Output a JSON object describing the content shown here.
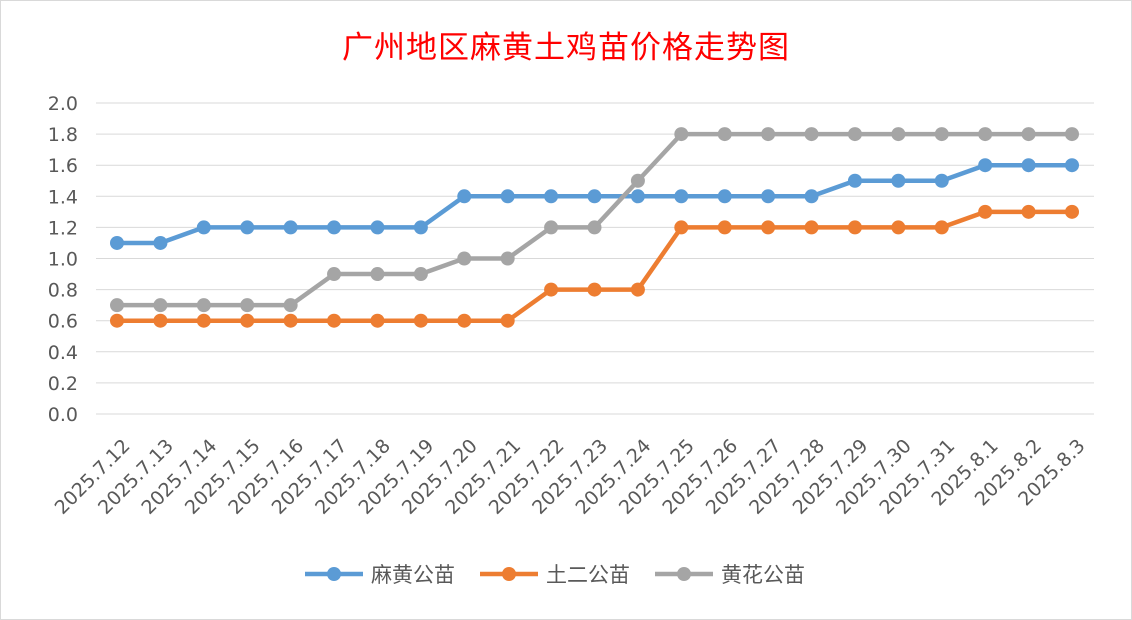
{
  "chart_data": {
    "type": "line",
    "title": "广州地区麻黄土鸡苗价格走势图",
    "xlabel": "",
    "ylabel": "",
    "ylim": [
      0,
      2.0
    ],
    "yticks": [
      "0.0",
      "0.2",
      "0.4",
      "0.6",
      "0.8",
      "1.0",
      "1.2",
      "1.4",
      "1.6",
      "1.8",
      "2.0"
    ],
    "grid": true,
    "legend_position": "bottom",
    "categories": [
      "2025.7.12",
      "2025.7.13",
      "2025.7.14",
      "2025.7.15",
      "2025.7.16",
      "2025.7.17",
      "2025.7.18",
      "2025.7.19",
      "2025.7.20",
      "2025.7.21",
      "2025.7.22",
      "2025.7.23",
      "2025.7.24",
      "2025.7.25",
      "2025.7.26",
      "2025.7.27",
      "2025.7.28",
      "2025.7.29",
      "2025.7.30",
      "2025.7.31",
      "2025.8.1",
      "2025.8.2",
      "2025.8.3"
    ],
    "series": [
      {
        "name": "麻黄公苗",
        "color": "#5b9bd5",
        "values": [
          1.1,
          1.1,
          1.2,
          1.2,
          1.2,
          1.2,
          1.2,
          1.2,
          1.4,
          1.4,
          1.4,
          1.4,
          1.4,
          1.4,
          1.4,
          1.4,
          1.4,
          1.5,
          1.5,
          1.5,
          1.6,
          1.6,
          1.6
        ]
      },
      {
        "name": "土二公苗",
        "color": "#ed7d31",
        "values": [
          0.6,
          0.6,
          0.6,
          0.6,
          0.6,
          0.6,
          0.6,
          0.6,
          0.6,
          0.6,
          0.8,
          0.8,
          0.8,
          1.2,
          1.2,
          1.2,
          1.2,
          1.2,
          1.2,
          1.2,
          1.3,
          1.3,
          1.3
        ]
      },
      {
        "name": "黄花公苗",
        "color": "#a5a5a5",
        "values": [
          0.7,
          0.7,
          0.7,
          0.7,
          0.7,
          0.9,
          0.9,
          0.9,
          1.0,
          1.0,
          1.2,
          1.2,
          1.5,
          1.8,
          1.8,
          1.8,
          1.8,
          1.8,
          1.8,
          1.8,
          1.8,
          1.8,
          1.8
        ]
      }
    ]
  }
}
